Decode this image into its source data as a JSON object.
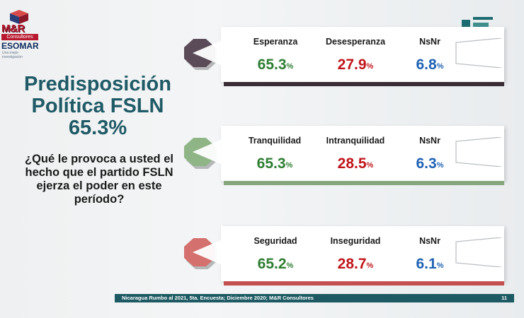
{
  "logo": {
    "brand": "M&R",
    "sub": "Consultores",
    "assoc": "ESOMAR",
    "assoc_sub": "Una mejor investigación"
  },
  "title": {
    "line1": "Predisposición",
    "line2": "Política FSLN",
    "line3": "65.3%"
  },
  "question": "¿Qué le provoca a usted el hecho que el partido FSLN ejerza el poder en este período?",
  "rows": [
    {
      "c1": {
        "label": "Esperanza",
        "value": "65.3",
        "pct": "%"
      },
      "c2": {
        "label": "Desesperanza",
        "value": "27.9",
        "pct": "%"
      },
      "c3": {
        "label": "NsNr",
        "value": "6.8",
        "pct": "%"
      }
    },
    {
      "c1": {
        "label": "Tranquilidad",
        "value": "65.3",
        "pct": "%"
      },
      "c2": {
        "label": "Intranquilidad",
        "value": "28.5",
        "pct": "%"
      },
      "c3": {
        "label": "NsNr",
        "value": "6.3",
        "pct": "%"
      }
    },
    {
      "c1": {
        "label": "Seguridad",
        "value": "65.2",
        "pct": "%"
      },
      "c2": {
        "label": "Inseguridad",
        "value": "28.7",
        "pct": "%"
      },
      "c3": {
        "label": "NsNr",
        "value": "6.1",
        "pct": "%"
      }
    }
  ],
  "footer": {
    "source": "Nicaragua Rumbo al 2021, 5ta. Encuesta; Diciembre 2020; M&R Consultores",
    "page": "11"
  },
  "colors": {
    "title": "#1f5a66",
    "positive": "#2e7d32",
    "negative": "#c0161b",
    "nsnr": "#1f62b4",
    "footer_bg": "#1d5a63"
  }
}
